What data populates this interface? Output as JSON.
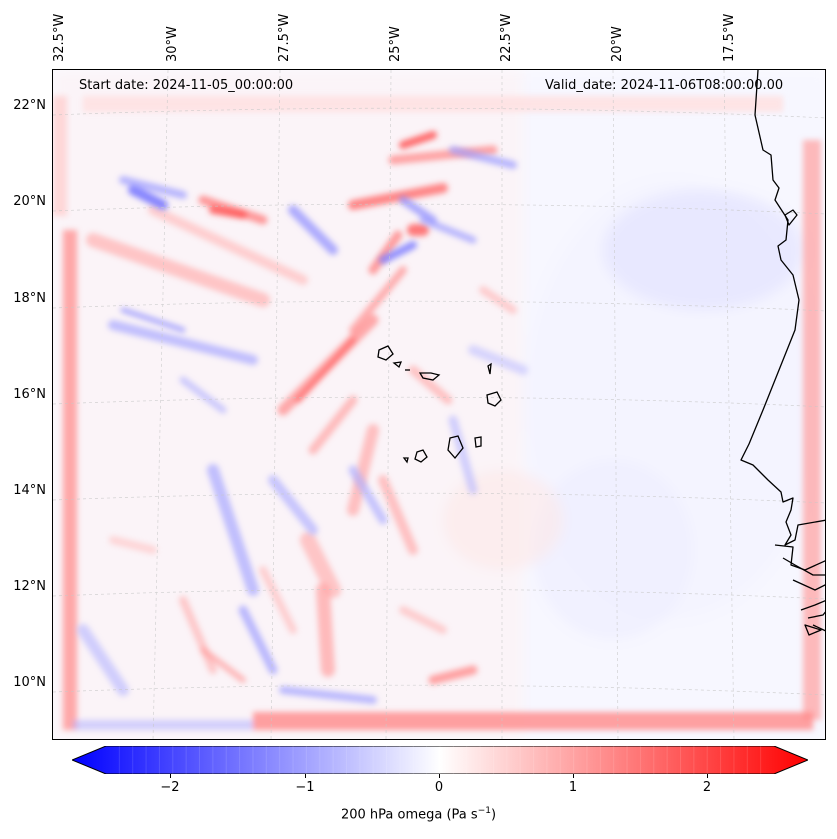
{
  "map": {
    "start_label": "Start date: 2024-11-05_00:00:00",
    "valid_label": "Valid_date: 2024-11-06T08:00:00.00",
    "lon_labels": [
      "32.5°W",
      "30°W",
      "27.5°W",
      "25°W",
      "22.5°W",
      "20°W",
      "17.5°W"
    ],
    "lat_labels": [
      "22°N",
      "20°N",
      "18°N",
      "16°N",
      "14°N",
      "12°N",
      "10°N"
    ],
    "variable": "200 hPa omega",
    "units": "Pa s",
    "units_exponent": "−1"
  },
  "colorbar": {
    "min": -2.7,
    "max": 2.7,
    "ticks": [
      "−2",
      "−1",
      "0",
      "1",
      "2"
    ],
    "tick_values": [
      -2,
      -1,
      0,
      1,
      2
    ],
    "extend": "both",
    "colormap": "bwr",
    "color_low": "#0000ff",
    "color_mid": "#ffffff",
    "color_high": "#ff0000"
  }
}
